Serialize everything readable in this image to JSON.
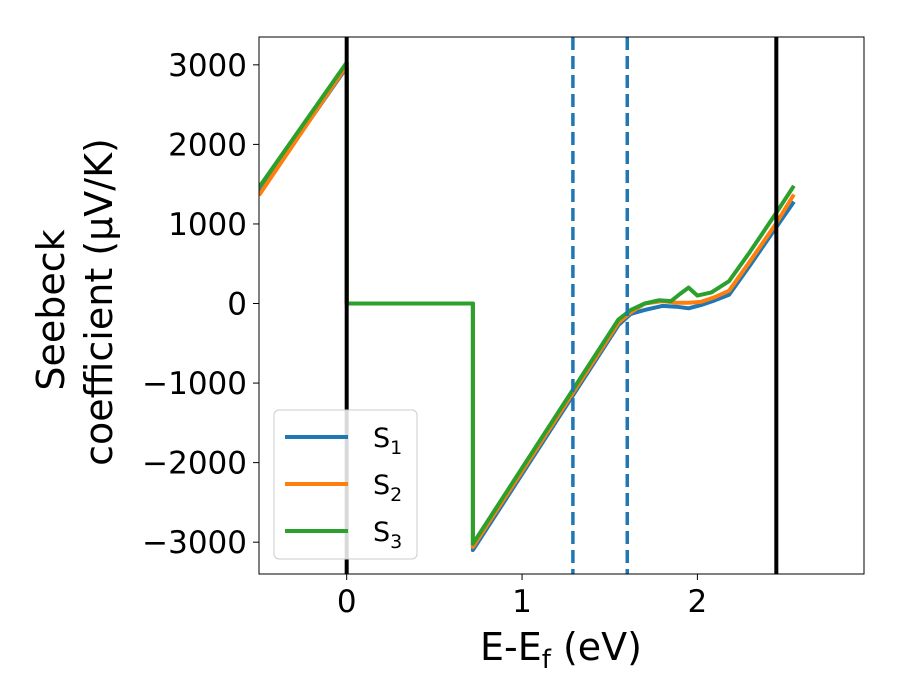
{
  "chart_data": {
    "type": "line",
    "xlabel": "E-E",
    "xlabel_sub": "f",
    "xlabel_unit": " (eV)",
    "ylabel_line1": "Seebeck",
    "ylabel_line2": "coefficient  (μV/K)",
    "xlim": [
      -0.5,
      2.95
    ],
    "ylim": [
      -3400,
      3350
    ],
    "xticks": [
      0,
      1,
      2
    ],
    "xtick_labels": [
      "0",
      "1",
      "2"
    ],
    "yticks": [
      3000,
      2000,
      1000,
      0,
      -1000,
      -2000,
      -3000
    ],
    "ytick_labels": [
      "3000",
      "2000",
      "1000",
      "0",
      "−1000",
      "−2000",
      "−3000"
    ],
    "grid": false,
    "legend_position": "lower-left",
    "vlines": [
      {
        "x": 0.0,
        "style": "solid",
        "color": "#000000"
      },
      {
        "x": 2.45,
        "style": "solid",
        "color": "#000000"
      },
      {
        "x": 1.29,
        "style": "dashed",
        "color": "#1f77b4"
      },
      {
        "x": 1.6,
        "style": "dashed",
        "color": "#1f77b4"
      }
    ],
    "series": [
      {
        "name": "S",
        "sub": "1",
        "color": "#1f77b4",
        "points": [
          [
            -0.5,
            1390
          ],
          [
            0.0,
            2970
          ],
          [
            0.0,
            0
          ],
          [
            0.72,
            0
          ],
          [
            0.72,
            -3100
          ],
          [
            1.55,
            -270
          ],
          [
            1.62,
            -130
          ],
          [
            1.7,
            -80
          ],
          [
            1.8,
            -30
          ],
          [
            1.88,
            -40
          ],
          [
            1.95,
            -60
          ],
          [
            2.02,
            -20
          ],
          [
            2.1,
            40
          ],
          [
            2.18,
            110
          ],
          [
            2.3,
            480
          ],
          [
            2.45,
            960
          ],
          [
            2.55,
            1280
          ]
        ]
      },
      {
        "name": "S",
        "sub": "2",
        "color": "#ff7f0e",
        "points": [
          [
            -0.5,
            1360
          ],
          [
            0.0,
            2990
          ],
          [
            0.0,
            0
          ],
          [
            0.72,
            0
          ],
          [
            0.72,
            -3060
          ],
          [
            1.55,
            -240
          ],
          [
            1.62,
            -110
          ],
          [
            1.7,
            0
          ],
          [
            1.8,
            30
          ],
          [
            1.88,
            10
          ],
          [
            1.95,
            10
          ],
          [
            2.02,
            20
          ],
          [
            2.1,
            80
          ],
          [
            2.18,
            160
          ],
          [
            2.3,
            530
          ],
          [
            2.45,
            1010
          ],
          [
            2.55,
            1370
          ]
        ]
      },
      {
        "name": "S",
        "sub": "3",
        "color": "#2ca02c",
        "points": [
          [
            -0.5,
            1460
          ],
          [
            0.0,
            3030
          ],
          [
            0.0,
            0
          ],
          [
            0.72,
            0
          ],
          [
            0.72,
            -3020
          ],
          [
            1.55,
            -200
          ],
          [
            1.62,
            -80
          ],
          [
            1.7,
            0
          ],
          [
            1.78,
            40
          ],
          [
            1.85,
            30
          ],
          [
            1.9,
            120
          ],
          [
            1.95,
            200
          ],
          [
            2.0,
            100
          ],
          [
            2.08,
            140
          ],
          [
            2.18,
            280
          ],
          [
            2.3,
            650
          ],
          [
            2.45,
            1140
          ],
          [
            2.55,
            1480
          ]
        ]
      }
    ]
  }
}
